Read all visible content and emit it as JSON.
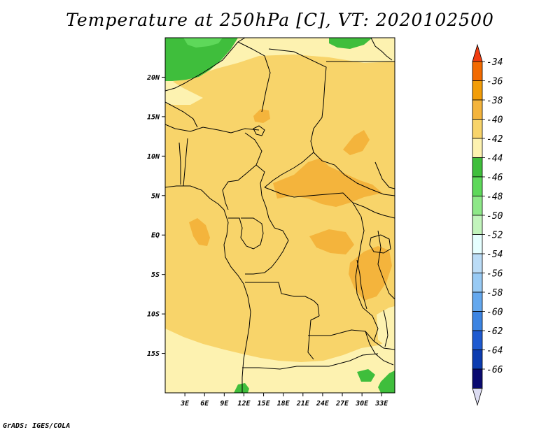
{
  "title": "Temperature at 250hPa [C], VT: 2020102500",
  "footer": "GrADS: IGES/COLA",
  "map": {
    "lon_range": [
      0,
      35
    ],
    "lat_range": [
      -20,
      25
    ],
    "x_ticks": [
      {
        "lon": 3,
        "label": "3E"
      },
      {
        "lon": 6,
        "label": "6E"
      },
      {
        "lon": 9,
        "label": "9E"
      },
      {
        "lon": 12,
        "label": "12E"
      },
      {
        "lon": 15,
        "label": "15E"
      },
      {
        "lon": 18,
        "label": "18E"
      },
      {
        "lon": 21,
        "label": "21E"
      },
      {
        "lon": 24,
        "label": "24E"
      },
      {
        "lon": 27,
        "label": "27E"
      },
      {
        "lon": 30,
        "label": "30E"
      },
      {
        "lon": 33,
        "label": "33E"
      }
    ],
    "y_ticks": [
      {
        "lat": 20,
        "label": "20N"
      },
      {
        "lat": 15,
        "label": "15N"
      },
      {
        "lat": 10,
        "label": "10N"
      },
      {
        "lat": 5,
        "label": "5N"
      },
      {
        "lat": 0,
        "label": "EQ"
      },
      {
        "lat": -5,
        "label": "5S"
      },
      {
        "lat": -10,
        "label": "10S"
      },
      {
        "lat": -15,
        "label": "15S"
      }
    ]
  },
  "colorbar": {
    "levels": [
      "-34",
      "-36",
      "-38",
      "-40",
      "-42",
      "-44",
      "-46",
      "-48",
      "-50",
      "-52",
      "-54",
      "-56",
      "-58",
      "-60",
      "-62",
      "-64",
      "-66"
    ],
    "colors": [
      "#f03c10",
      "#f26a00",
      "#f29d08",
      "#f4b43c",
      "#f8d46a",
      "#fdf2b0",
      "#3fbe3c",
      "#5ed85a",
      "#8ee888",
      "#c2f4bc",
      "#e6ffff",
      "#bbdcf6",
      "#98caf4",
      "#64a8ee",
      "#3c84e2",
      "#1e5ad0",
      "#0c3cb0",
      "#0a0a70",
      "#dcdcf2"
    ]
  },
  "palette": {
    "base": "#f8d46a",
    "warm": "#f4b43c",
    "cool": "#fdf2b0",
    "green": "#3fbe3c",
    "green_light": "#5ed85a"
  }
}
